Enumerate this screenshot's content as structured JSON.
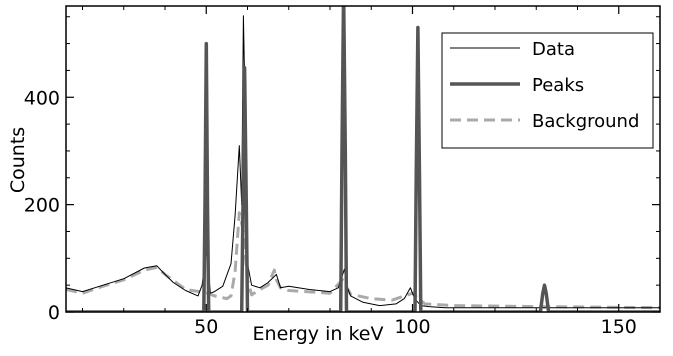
{
  "chart_data": {
    "type": "line",
    "title": "",
    "xlabel": "Energy in keV",
    "ylabel": "Counts",
    "xlim": [
      16,
      160
    ],
    "ylim": [
      0,
      570
    ],
    "x_ticks": [
      50,
      100,
      150
    ],
    "x_tick_labels": [
      "50",
      "100",
      "150"
    ],
    "y_ticks": [
      0,
      200,
      400
    ],
    "y_tick_labels": [
      "0",
      "200",
      "400"
    ],
    "grid": false,
    "legend_position": "top-right",
    "series": [
      {
        "name": "Data",
        "style": "thin-solid",
        "color": "#000000",
        "x": [
          16,
          20,
          25,
          30,
          35,
          38,
          40,
          42,
          45,
          48,
          49,
          50,
          50.6,
          51,
          52,
          54,
          56,
          57,
          58,
          58.6,
          59,
          59.6,
          60,
          61,
          63,
          65,
          67,
          68,
          70,
          75,
          80,
          82,
          83.5,
          84,
          85,
          88,
          92,
          96,
          98,
          99.5,
          100.5,
          102,
          104,
          108,
          115,
          125,
          135,
          145,
          155,
          160
        ],
        "y": [
          45,
          38,
          50,
          62,
          82,
          86,
          70,
          55,
          40,
          30,
          50,
          115,
          70,
          35,
          38,
          48,
          90,
          180,
          310,
          200,
          552,
          300,
          90,
          50,
          45,
          55,
          70,
          45,
          48,
          42,
          38,
          45,
          80,
          50,
          30,
          18,
          12,
          15,
          25,
          45,
          25,
          12,
          10,
          8,
          8,
          8,
          8,
          8,
          8,
          8
        ]
      },
      {
        "name": "Peaks",
        "style": "thick-solid",
        "color": "#555555",
        "x": [
          16,
          49.4,
          49.7,
          50,
          50.3,
          50.6,
          58.6,
          58.9,
          59.3,
          59.7,
          60,
          82.6,
          82.9,
          83.3,
          83.7,
          84,
          100.6,
          100.9,
          101.3,
          101.7,
          102,
          131,
          131.6,
          132,
          132.4,
          133,
          160
        ],
        "y": [
          0,
          0,
          200,
          500,
          200,
          0,
          0,
          200,
          455,
          200,
          0,
          0,
          300,
          600,
          300,
          0,
          0,
          250,
          530,
          250,
          0,
          0,
          35,
          50,
          35,
          0,
          0
        ]
      },
      {
        "name": "Background",
        "style": "dashed",
        "color": "#aaaaaa",
        "x": [
          16,
          20,
          25,
          30,
          35,
          38,
          40,
          45,
          50,
          52,
          55,
          56,
          57,
          58,
          59,
          60,
          61,
          63,
          65,
          66.5,
          67,
          68,
          70,
          80,
          83,
          85,
          90,
          95,
          100,
          101,
          103,
          110,
          130,
          160
        ],
        "y": [
          42,
          35,
          48,
          60,
          78,
          83,
          70,
          42,
          36,
          30,
          25,
          30,
          75,
          185,
          150,
          60,
          32,
          42,
          50,
          78,
          60,
          45,
          40,
          35,
          60,
          33,
          25,
          22,
          35,
          28,
          15,
          12,
          10,
          8
        ]
      }
    ]
  }
}
